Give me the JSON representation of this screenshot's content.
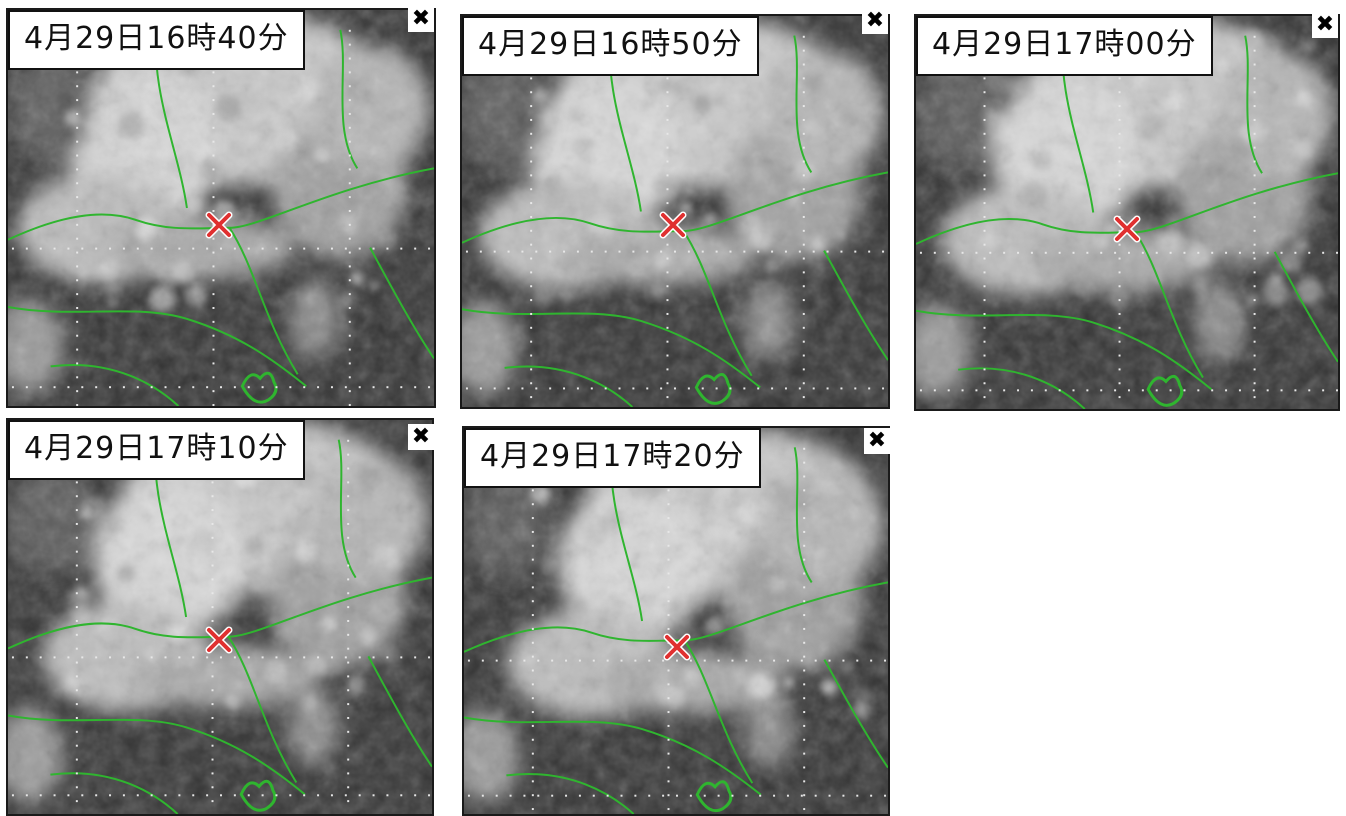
{
  "panels": [
    {
      "timestamp": "4月29日16時40分"
    },
    {
      "timestamp": "4月29日16時50分"
    },
    {
      "timestamp": "4月29日17時00分"
    },
    {
      "timestamp": "4月29日17時10分"
    },
    {
      "timestamp": "4月29日17時20分"
    }
  ],
  "close_icon_glyph": "✖",
  "colors": {
    "coastline": "#2fb52f",
    "marker": "#e03030",
    "grid_dots": "#e8e8e8",
    "background_dark": "#2b2b2b",
    "cloud_light": "#cfcfcf"
  }
}
